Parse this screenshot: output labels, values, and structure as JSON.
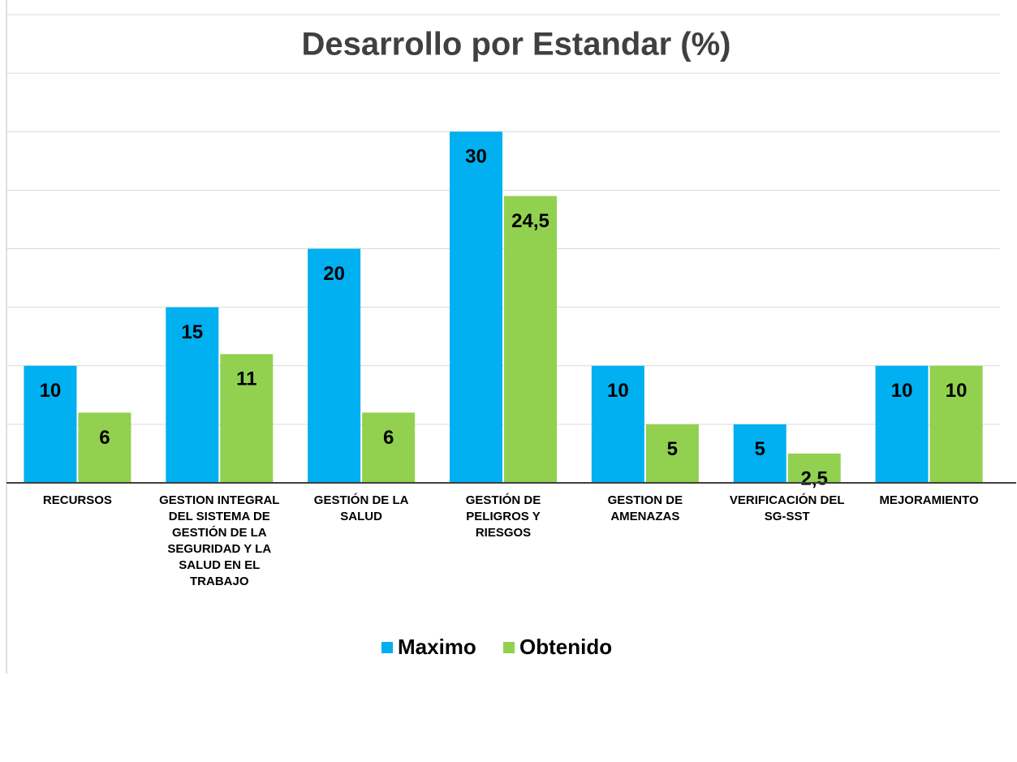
{
  "chart_data": {
    "type": "bar",
    "title": "Desarrollo por Estandar (%)",
    "categories": [
      "RECURSOS",
      "GESTION INTEGRAL DEL SISTEMA DE GESTIÓN DE LA SEGURIDAD Y LA SALUD EN EL TRABAJO",
      "GESTIÓN DE LA SALUD",
      "GESTIÓN DE PELIGROS Y RIESGOS",
      "GESTION DE AMENAZAS",
      "VERIFICACIÓN DEL SG-SST",
      "MEJORAMIENTO"
    ],
    "series": [
      {
        "name": "Maximo",
        "color": "#00b0f0",
        "values": [
          10,
          15,
          20,
          30,
          10,
          5,
          10
        ]
      },
      {
        "name": "Obtenido",
        "color": "#92d050",
        "values": [
          6,
          11,
          6,
          24.5,
          5,
          2.5,
          10
        ],
        "value_labels": [
          "6",
          "11",
          "6",
          "24,5",
          "5",
          "2,5",
          "10"
        ]
      }
    ],
    "ylim": [
      0,
      40
    ],
    "yticks": [
      0,
      5,
      10,
      15,
      20,
      25,
      30,
      35,
      40
    ],
    "grid": true,
    "legend": "bottom"
  }
}
